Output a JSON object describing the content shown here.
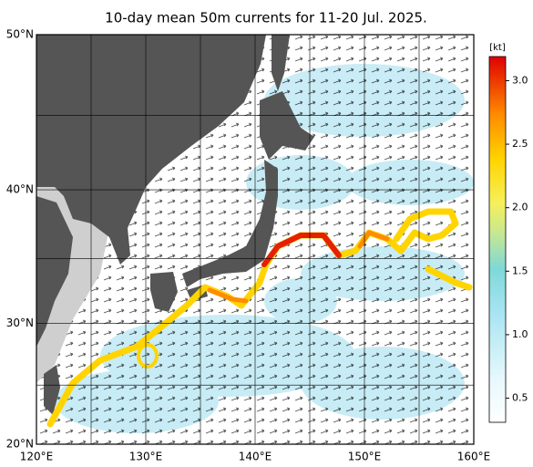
{
  "title": "10-day mean 50m currents for 11-20 Jul. 2025.",
  "lon_ticks": [
    {
      "value": 120,
      "label": "120°E"
    },
    {
      "value": 130,
      "label": "130°E"
    },
    {
      "value": 140,
      "label": "140°E"
    },
    {
      "value": 150,
      "label": "150°E"
    },
    {
      "value": 160,
      "label": "160°E"
    }
  ],
  "lat_ticks": [
    {
      "value": 20,
      "label": "20°N"
    },
    {
      "value": 30,
      "label": "30°N"
    },
    {
      "value": 40,
      "label": "40°N"
    },
    {
      "value": 50,
      "label": "50°N"
    }
  ],
  "colorbar": {
    "unit": "[kt]",
    "range": [
      0.31,
      3.19
    ],
    "ticks": [
      {
        "value": 0.5,
        "label": "0.5"
      },
      {
        "value": 1,
        "label": "1.0"
      },
      {
        "value": 1.5,
        "label": "1.5"
      },
      {
        "value": 2,
        "label": "2.0"
      },
      {
        "value": 2.5,
        "label": "2.5"
      },
      {
        "value": 3,
        "label": "3.0"
      }
    ]
  }
}
